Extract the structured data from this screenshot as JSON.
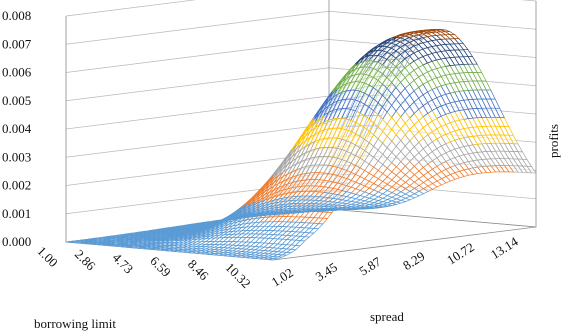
{
  "chart_data": {
    "type": "surface",
    "title": "",
    "zlabel": "profits",
    "xlabel": "borrowing limit",
    "ylabel": "spread",
    "zlim": [
      0,
      0.008
    ],
    "z_ticks": [
      "0.000",
      "0.001",
      "0.002",
      "0.003",
      "0.004",
      "0.005",
      "0.006",
      "0.007",
      "0.008"
    ],
    "x_ticks": [
      "1.00",
      "2.86",
      "4.73",
      "6.59",
      "8.46",
      "10.32"
    ],
    "y_ticks": [
      "1.02",
      "3.45",
      "5.87",
      "8.29",
      "10.72",
      "13.14"
    ],
    "x_range": [
      1.0,
      11.25
    ],
    "y_range": [
      1.02,
      15.56
    ],
    "grid": true,
    "legend": "none",
    "band_colors": [
      "#5b9bd5",
      "#ed7d31",
      "#a5a5a5",
      "#ffc000",
      "#4472c4",
      "#70ad47",
      "#264478",
      "#9e480e"
    ],
    "surface_samples": [
      {
        "x": 1.0,
        "y": 1.02,
        "z": 0.0
      },
      {
        "x": 1.0,
        "y": 15.56,
        "z": 0.0
      },
      {
        "x": 6.59,
        "y": 1.02,
        "z": 0.0003
      },
      {
        "x": 6.59,
        "y": 8.29,
        "z": 0.0054
      },
      {
        "x": 8.46,
        "y": 8.29,
        "z": 0.0066
      },
      {
        "x": 10.32,
        "y": 10.72,
        "z": 0.0074
      },
      {
        "x": 10.32,
        "y": 15.56,
        "z": 0.004
      },
      {
        "x": 10.32,
        "y": 1.02,
        "z": 0.0005
      }
    ]
  }
}
